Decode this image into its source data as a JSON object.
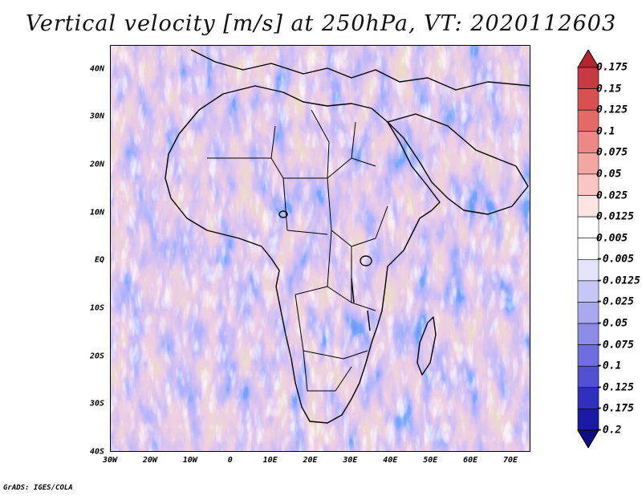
{
  "title": "Vertical velocity [m/s] at 250hPa, VT: 2020112603",
  "credit": "GrADS: IGES/COLA",
  "map": {
    "lat_labels": [
      "40N",
      "30N",
      "20N",
      "10N",
      "EQ",
      "10S",
      "20S",
      "30S",
      "40S"
    ],
    "lon_labels": [
      "30W",
      "20W",
      "10W",
      "0",
      "10E",
      "20E",
      "30E",
      "40E",
      "50E",
      "60E",
      "70E"
    ],
    "lon_range": [
      -30,
      75
    ],
    "lat_range": [
      -40,
      45
    ]
  },
  "colorbar": {
    "labels": [
      "0.175",
      "0.15",
      "0.125",
      "0.1",
      "0.075",
      "0.05",
      "0.025",
      "0.0125",
      "0.005",
      "-0.005",
      "-0.0125",
      "-0.025",
      "-0.05",
      "-0.075",
      "-0.1",
      "-0.125",
      "-0.175",
      "-0.2"
    ],
    "colors": [
      "#b3262e",
      "#c93a40",
      "#d95050",
      "#e46a68",
      "#ee8884",
      "#f4a6a2",
      "#f9c6c3",
      "#fde3e1",
      "#ffffff",
      "#ffffff",
      "#e3e3fb",
      "#c7c7f6",
      "#a9a9f0",
      "#8b8be8",
      "#6e6ede",
      "#5050d0",
      "#3030c0",
      "#1a1aa6",
      "#0c0c85"
    ]
  }
}
